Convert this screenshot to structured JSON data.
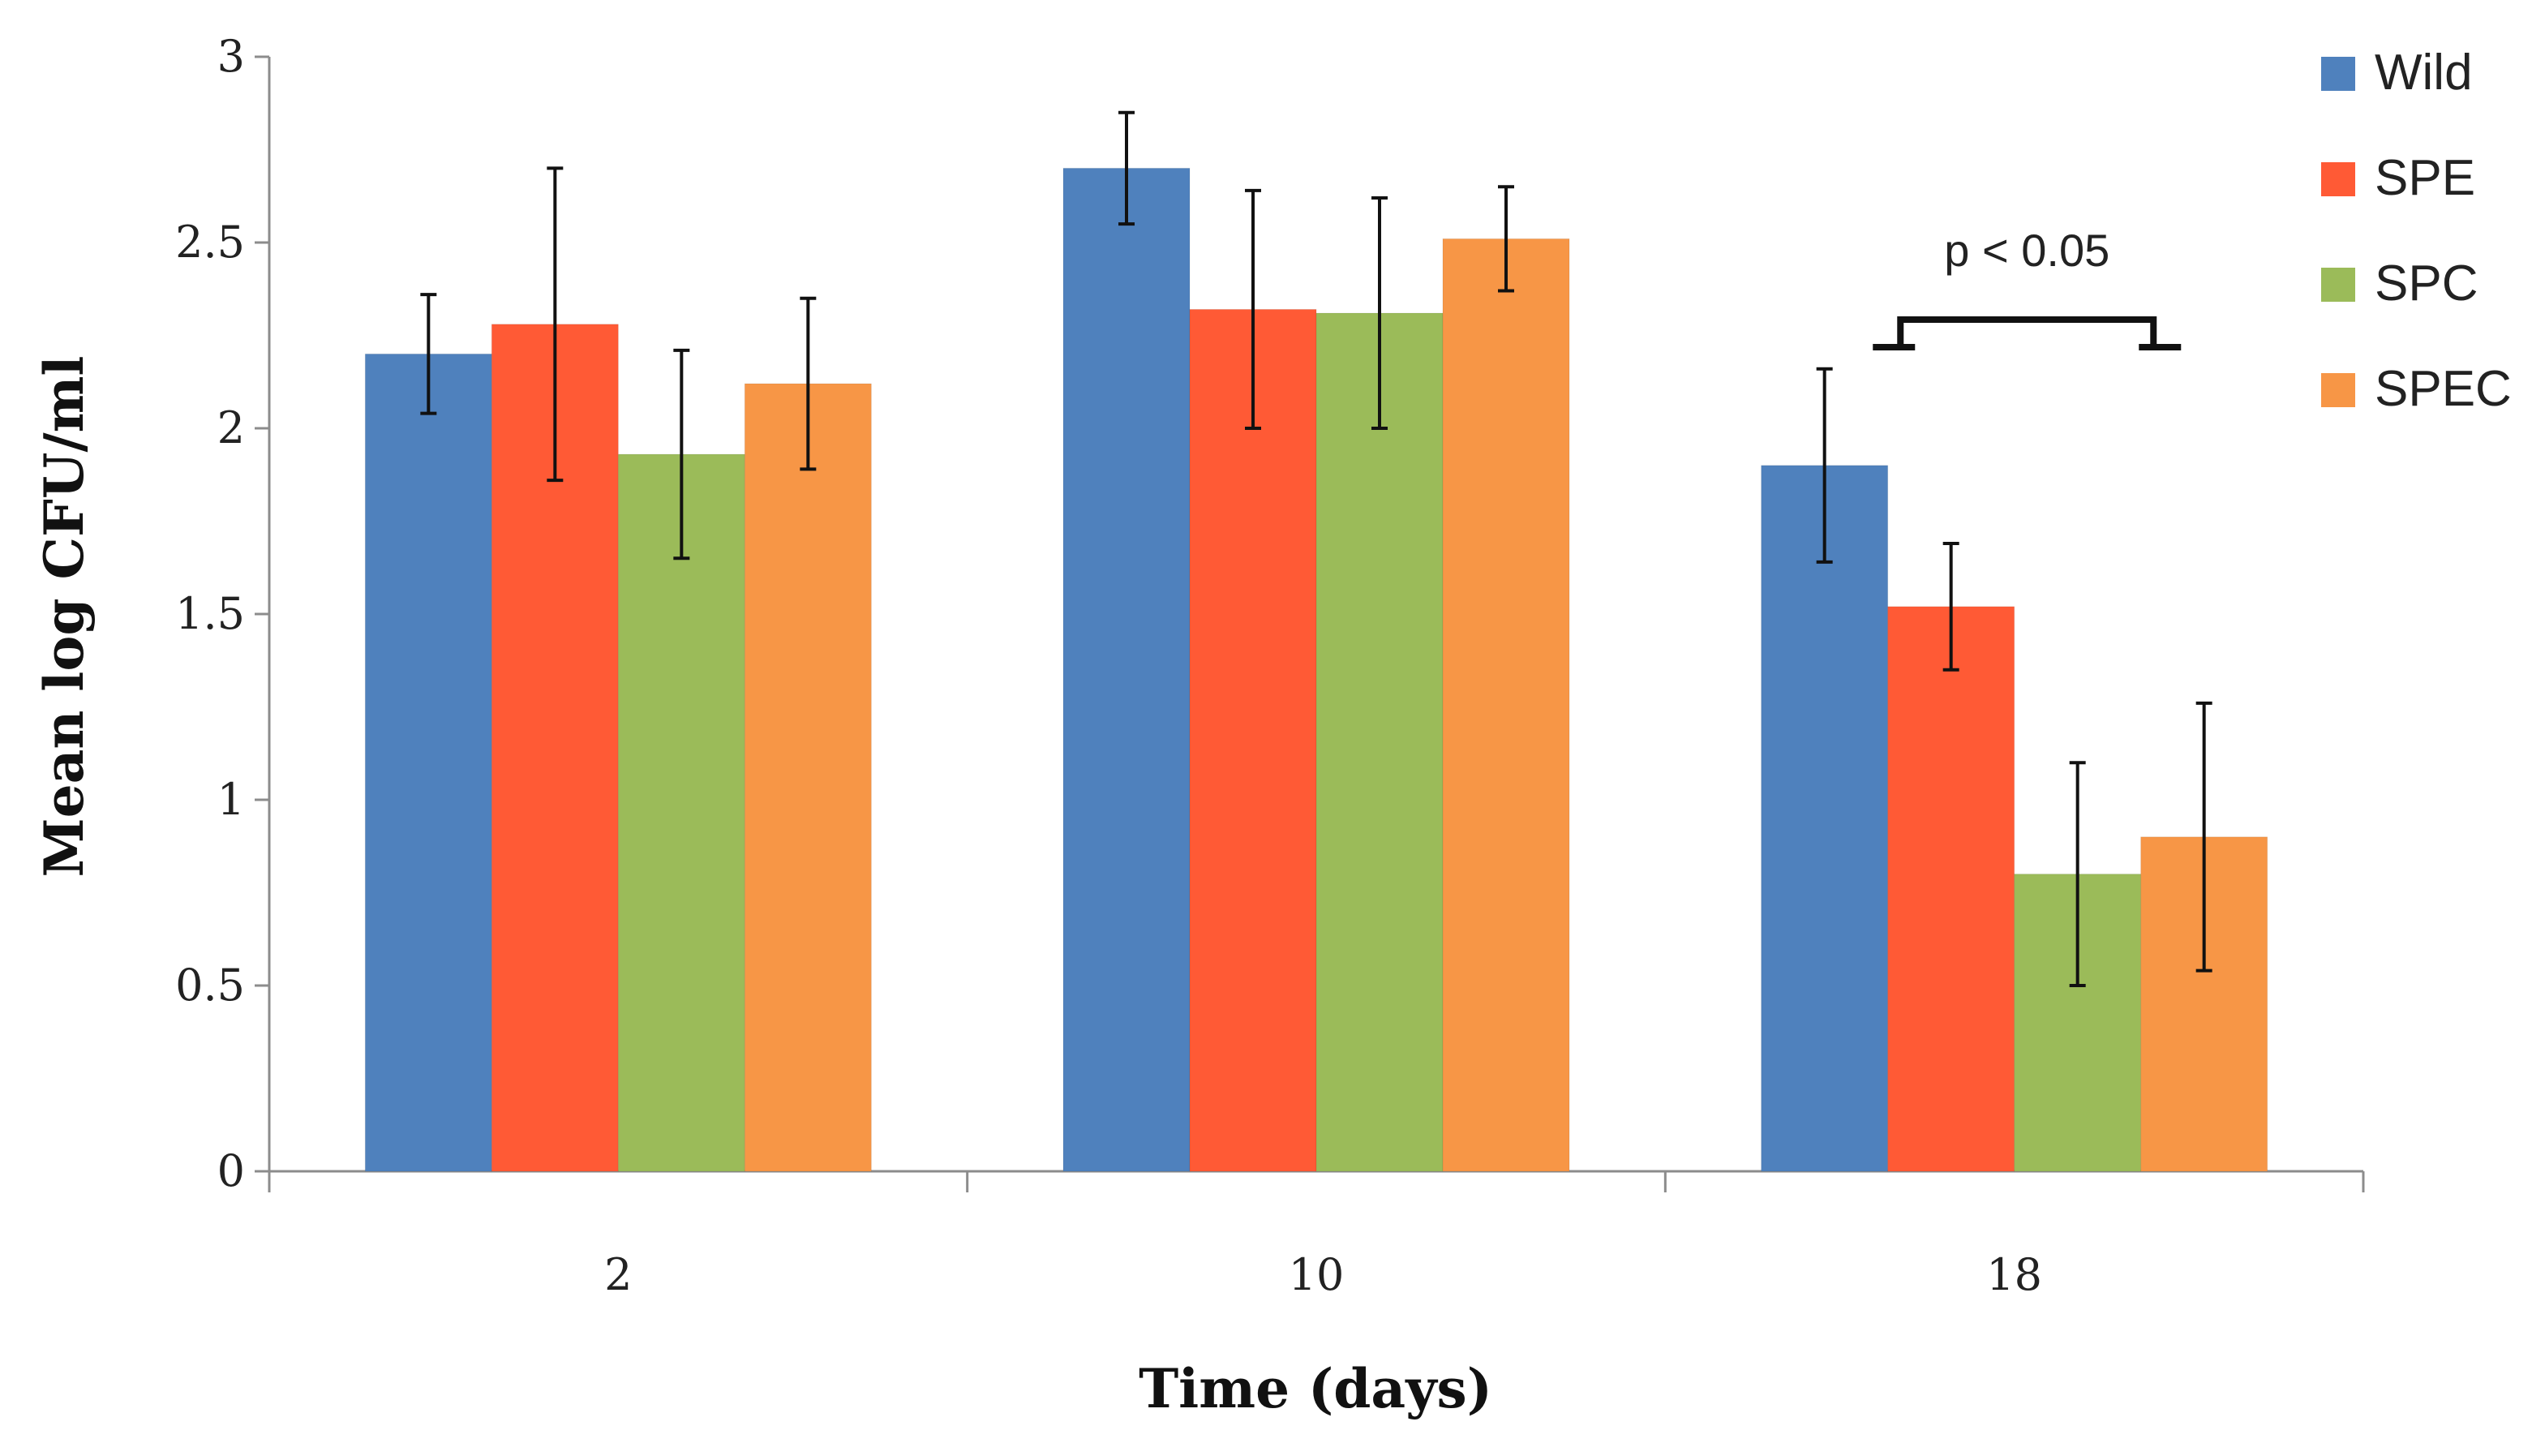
{
  "chart_data": {
    "type": "bar",
    "title": "",
    "xlabel": "Time (days)",
    "ylabel": "Mean log CFU/ml",
    "categories": [
      "2",
      "10",
      "18"
    ],
    "ylim": [
      0,
      3
    ],
    "yticks": [
      "0",
      "0.5",
      "1",
      "1.5",
      "2",
      "2.5",
      "3"
    ],
    "legend_position": "top-right",
    "series": [
      {
        "name": "Wild",
        "color": "#4f81bd",
        "values": [
          2.2,
          2.7,
          1.9
        ],
        "errors": [
          0.16,
          0.15,
          0.26
        ]
      },
      {
        "name": "SPE",
        "color": "#ff5a35",
        "values": [
          2.28,
          2.32,
          1.52
        ],
        "errors": [
          0.42,
          0.32,
          0.17
        ]
      },
      {
        "name": "SPC",
        "color": "#9bbb59",
        "values": [
          1.93,
          2.31,
          0.8
        ],
        "errors": [
          0.28,
          0.31,
          0.3
        ]
      },
      {
        "name": "SPEC",
        "color": "#f79646",
        "values": [
          2.12,
          2.51,
          0.9
        ],
        "errors": [
          0.23,
          0.14,
          0.36
        ]
      }
    ],
    "annotations": [
      {
        "text": "p < 0.05",
        "category": "18",
        "between_series": [
          "SPE",
          "SPEC"
        ]
      }
    ]
  }
}
